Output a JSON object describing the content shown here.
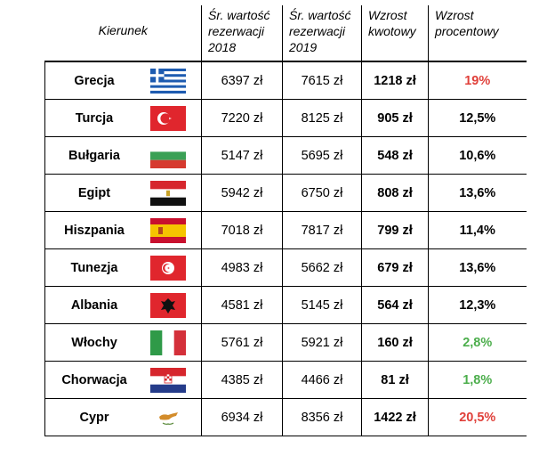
{
  "headers": {
    "name": "Kierunek",
    "avg2018": [
      "Śr. wartość",
      "rezerwacji",
      "2018"
    ],
    "avg2019": [
      "Śr. wartość",
      "rezerwacji",
      "2019"
    ],
    "growth_amount": [
      "Wzrost",
      "kwotowy"
    ],
    "growth_percent": [
      "Wzrost",
      "procentowy"
    ]
  },
  "colors": {
    "red": "#e0403a",
    "green": "#4cae4c"
  },
  "rows": [
    {
      "name": "Grecja",
      "flag": "greece-flag-icon",
      "v2018": "6397 zł",
      "v2019": "7615 zł",
      "growth": "1218 zł",
      "pct": "19%",
      "pct_color": "red"
    },
    {
      "name": "Turcja",
      "flag": "turkey-flag-icon",
      "v2018": "7220 zł",
      "v2019": "8125 zł",
      "growth": "905 zł",
      "pct": "12,5%",
      "pct_color": "black"
    },
    {
      "name": "Bułgaria",
      "flag": "bulgaria-flag-icon",
      "v2018": "5147 zł",
      "v2019": "5695 zł",
      "growth": "548 zł",
      "pct": "10,6%",
      "pct_color": "black"
    },
    {
      "name": "Egipt",
      "flag": "egypt-flag-icon",
      "v2018": "5942 zł",
      "v2019": "6750 zł",
      "growth": "808 zł",
      "pct": "13,6%",
      "pct_color": "black"
    },
    {
      "name": "Hiszpania",
      "flag": "spain-flag-icon",
      "v2018": "7018 zł",
      "v2019": "7817 zł",
      "growth": "799 zł",
      "pct": "11,4%",
      "pct_color": "black"
    },
    {
      "name": "Tunezja",
      "flag": "tunisia-flag-icon",
      "v2018": "4983 zł",
      "v2019": "5662 zł",
      "growth": "679 zł",
      "pct": "13,6%",
      "pct_color": "black"
    },
    {
      "name": "Albania",
      "flag": "albania-flag-icon",
      "v2018": "4581 zł",
      "v2019": "5145 zł",
      "growth": "564 zł",
      "pct": "12,3%",
      "pct_color": "black"
    },
    {
      "name": "Włochy",
      "flag": "italy-flag-icon",
      "v2018": "5761 zł",
      "v2019": "5921 zł",
      "growth": "160 zł",
      "pct": "2,8%",
      "pct_color": "green"
    },
    {
      "name": "Chorwacja",
      "flag": "croatia-flag-icon",
      "v2018": "4385 zł",
      "v2019": "4466 zł",
      "growth": "81 zł",
      "pct": "1,8%",
      "pct_color": "green"
    },
    {
      "name": "Cypr",
      "flag": "cyprus-flag-icon",
      "v2018": "6934 zł",
      "v2019": "8356 zł",
      "growth": "1422 zł",
      "pct": "20,5%",
      "pct_color": "red"
    }
  ]
}
